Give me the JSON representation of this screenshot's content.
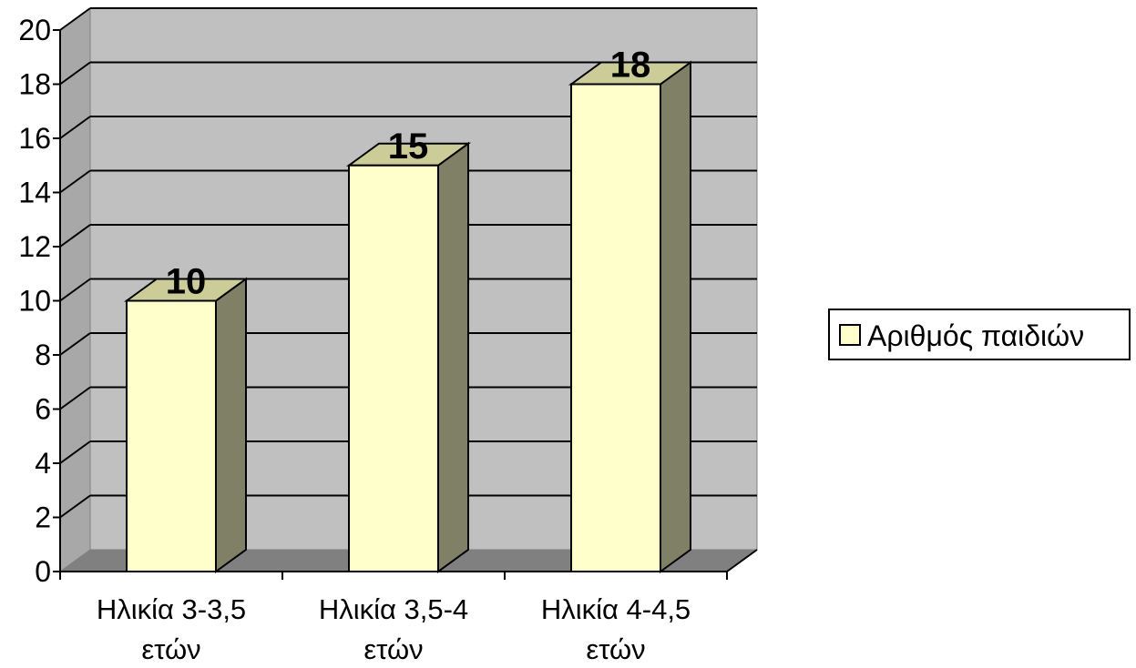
{
  "chart_data": {
    "type": "bar",
    "title": "",
    "xlabel": "",
    "ylabel": "",
    "categories": [
      [
        "Ηλικία 3-3,5",
        "ετών"
      ],
      [
        "Ηλικία 3,5-4",
        "ετών"
      ],
      [
        "Ηλικία 4-4,5",
        "ετών"
      ]
    ],
    "series": [
      {
        "name": "Αριθμός παιδιών",
        "values": [
          10,
          15,
          18
        ]
      }
    ],
    "ylim": [
      0,
      20
    ],
    "yticks": [
      0,
      2,
      4,
      6,
      8,
      10,
      12,
      14,
      16,
      18,
      20
    ],
    "grid": true,
    "legend_position": "right",
    "three_d": true,
    "colors": {
      "bar_front": "#ffffcc",
      "bar_top": "#cccc99",
      "bar_side": "#808066",
      "wall": "#c0c0c0",
      "floor": "#808080",
      "side_wall": "#a8a8a8"
    }
  }
}
